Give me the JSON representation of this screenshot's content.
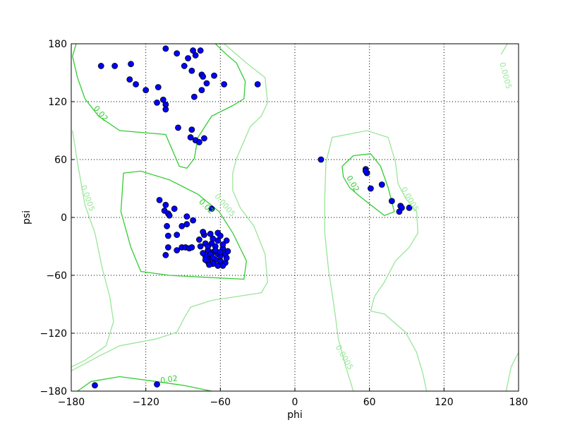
{
  "chart_data": {
    "type": "scatter",
    "xlabel": "phi",
    "ylabel": "psi",
    "xlim": [
      -180,
      180
    ],
    "ylim": [
      -180,
      180
    ],
    "xticks": [
      {
        "value": -180,
        "label": "−180"
      },
      {
        "value": -120,
        "label": "−120"
      },
      {
        "value": -60,
        "label": "−60"
      },
      0,
      60,
      120,
      180
    ],
    "yticks": [
      {
        "value": -180,
        "label": "−180"
      },
      {
        "value": -120,
        "label": "−120"
      },
      {
        "value": -60,
        "label": "−60"
      },
      0,
      60,
      120,
      180
    ],
    "grid": true,
    "series": [
      {
        "color": "#0000ff",
        "x": [
          -156,
          -145,
          -132,
          -104,
          -95,
          -133,
          -128,
          -120,
          -110,
          -111,
          -106,
          -104,
          -104,
          -86,
          -80,
          -76,
          -82,
          -89,
          -83,
          -75,
          -74,
          -65,
          -71,
          -57,
          -75,
          -81,
          -30,
          -94,
          -83,
          -84,
          -80,
          -77,
          -73,
          21,
          57,
          58,
          57,
          61,
          70,
          78,
          85,
          86,
          84,
          92,
          -161,
          -111,
          -109,
          -104,
          -105,
          -102,
          -97,
          -101,
          -87,
          -67,
          -103,
          -91,
          -87,
          -82,
          -102,
          -95,
          -102,
          -104,
          -95,
          -91,
          -88,
          -85,
          -83,
          -73,
          -74,
          -77,
          -68,
          -62,
          -60,
          -55,
          -67,
          -72,
          -76,
          -64,
          -58,
          -56,
          -70,
          -66,
          -62,
          -72,
          -68,
          -64,
          -60,
          -56,
          -70,
          -66,
          -62,
          -58,
          -74,
          -60,
          -55,
          -68,
          -64,
          -70,
          -62,
          -66,
          -58,
          -72,
          -69,
          -54,
          -60,
          -66
        ],
        "y": [
          157,
          157,
          159,
          175,
          170,
          143,
          138,
          132,
          135,
          119,
          122,
          117,
          112,
          165,
          168,
          173,
          173,
          157,
          152,
          148,
          146,
          147,
          139,
          138,
          132,
          125,
          138,
          93,
          91,
          83,
          80,
          78,
          82,
          60,
          50,
          46,
          48,
          30,
          34,
          17,
          12,
          10,
          6,
          10,
          -174,
          -173,
          18,
          13,
          7,
          4,
          9,
          2,
          1,
          9,
          -9,
          -9,
          -7,
          -3,
          -19,
          -18,
          -31,
          -39,
          -34,
          -31,
          -31,
          -32,
          -31,
          -18,
          -15,
          -23,
          -17,
          -16,
          -19,
          -24,
          -27,
          -27,
          -30,
          -30,
          -32,
          -38,
          -34,
          -36,
          -38,
          -40,
          -42,
          -44,
          -45,
          -47,
          -46,
          -48,
          -50,
          -50,
          -37,
          -40,
          -42,
          -38,
          -34,
          -30,
          -24,
          -22,
          -28,
          -44,
          -49,
          -35,
          -36,
          -42
        ]
      }
    ],
    "contours": [
      {
        "level": 0.02,
        "color": "#33cc33",
        "lines": [
          {
            "x": [
              -176,
              -179,
              -175,
              -169,
              -158,
              -141,
              -104,
              -98,
              -93,
              -87,
              -81,
              -78,
              -67,
              -50,
              -41,
              -40,
              -47,
              -56,
              -64
            ],
            "y": [
              180,
              167,
              145,
              123,
              105,
              90,
              86,
              68,
              53,
              51,
              61,
              83,
              105,
              116,
              123,
              141,
              160,
              170,
              180
            ]
          },
          {
            "x": [
              -138,
              -140,
              -132,
              -124,
              -101,
              -73,
              -41,
              -39,
              -50,
              -61,
              -78,
              -101,
              -124,
              -138
            ],
            "y": [
              46,
              6,
              -31,
              -56,
              -60,
              -62,
              -64,
              -45,
              -16,
              6,
              24,
              39,
              48,
              46
            ]
          },
          {
            "x": [
              38,
              47,
              61,
              69,
              75,
              80,
              72,
              61,
              52,
              44,
              39,
              38
            ],
            "y": [
              53,
              64,
              66,
              53,
              31,
              6,
              2,
              13,
              22,
              31,
              42,
              53
            ]
          },
          {
            "x": [
              -175,
              -164,
              -141,
              -112,
              -90,
              -67
            ],
            "y": [
              -180,
              -170,
              -165,
              -170,
              -174,
              -180
            ]
          }
        ]
      },
      {
        "level": 0.0005,
        "color": "#99e699",
        "lines": [
          {
            "x": [
              -57,
              -39,
              -24,
              -22,
              -27,
              -36,
              -41,
              -47,
              -50,
              -50,
              -44,
              -33,
              -24,
              -22,
              -27,
              -47,
              -67,
              -84,
              -89,
              -95,
              -112,
              -141,
              -158,
              -180
            ],
            "y": [
              180,
              160,
              145,
              119,
              105,
              94,
              79,
              61,
              46,
              28,
              10,
              -9,
              -38,
              -67,
              -78,
              -82,
              -86,
              -93,
              -104,
              -119,
              -126,
              -133,
              -144,
              -159
            ]
          },
          {
            "x": [
              -179,
              -175,
              -169,
              -161,
              -155,
              -149,
              -146,
              -152,
              -169,
              -180
            ],
            "y": [
              90,
              57,
              13,
              -16,
              -53,
              -82,
              -108,
              -133,
              -148,
              -155
            ]
          },
          {
            "x": [
              47,
              41,
              35,
              32,
              27,
              24,
              24,
              25,
              30,
              58,
              75,
              81,
              83,
              89,
              98,
              99,
              92,
              81,
              72,
              64,
              61,
              72,
              89,
              98,
              103,
              106
            ],
            "y": [
              -180,
              -155,
              -126,
              -97,
              -53,
              -16,
              20,
              57,
              83,
              90,
              83,
              57,
              35,
              20,
              6,
              -16,
              -31,
              -45,
              -67,
              -82,
              -97,
              -100,
              -119,
              -140,
              -162,
              -180
            ]
          },
          {
            "x": [
              171,
              166
            ],
            "y": [
              180,
              169
            ]
          },
          {
            "x": [
              170,
              174,
              180
            ],
            "y": [
              -180,
              -155,
              -140
            ]
          }
        ]
      }
    ]
  }
}
